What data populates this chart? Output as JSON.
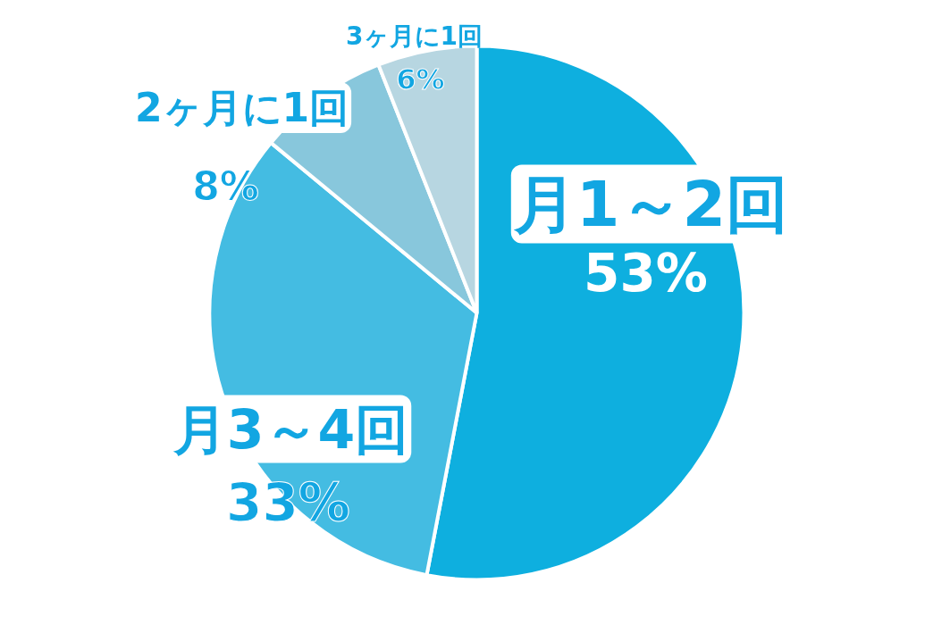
{
  "chart_data": {
    "type": "pie",
    "categories": [
      "月1～2回",
      "月3～4回",
      "2ヶ月に1回",
      "3ヶ月に1回"
    ],
    "values": [
      53,
      33,
      8,
      6
    ],
    "colors": [
      "#0eafdf",
      "#44bce2",
      "#88c7dc",
      "#b7d6e1"
    ],
    "value_labels": [
      "53%",
      "33%",
      "8%",
      "6%"
    ]
  }
}
